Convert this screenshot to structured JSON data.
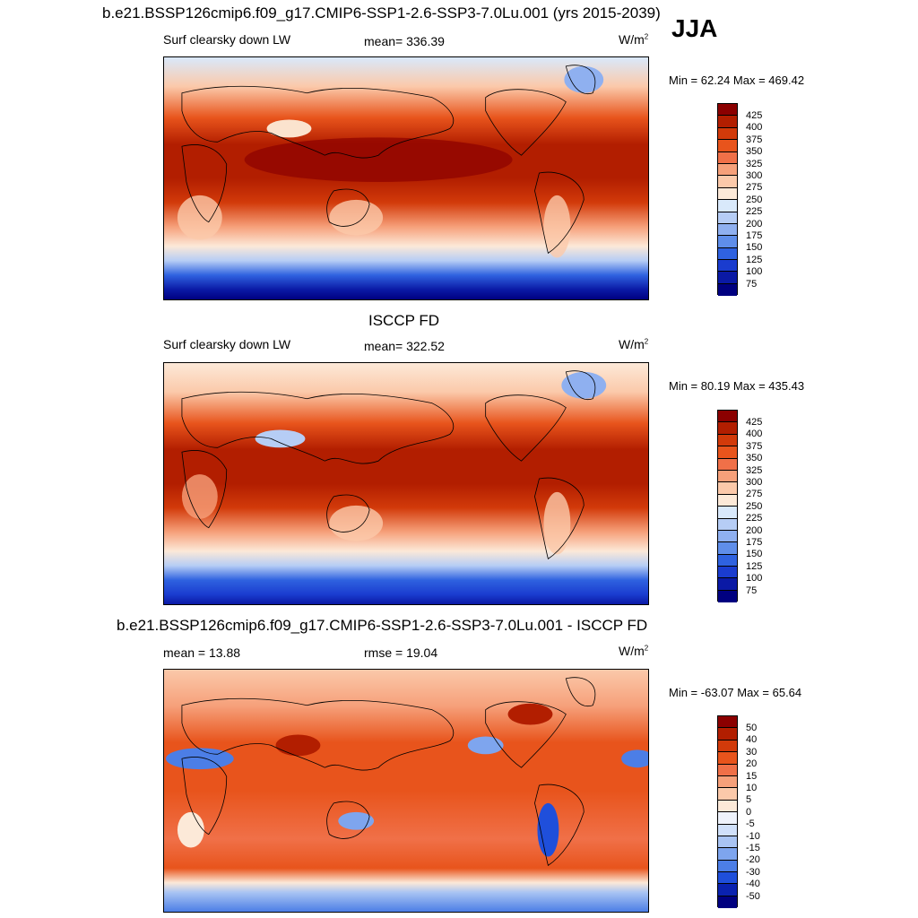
{
  "main_title": "b.e21.BSSP126cmip6.f09_g17.CMIP6-SSP1-2.6-SSP3-7.0Lu.001 (yrs 2015-2039)",
  "season": "JJA",
  "panels": [
    {
      "left_label": "Surf clearsky down LW",
      "center_label": "mean= 336.39",
      "units": "W/m",
      "units_sup": "2",
      "minmax": "Min =  62.24 Max = 469.42",
      "colorbar_labels": [
        "425",
        "400",
        "375",
        "350",
        "325",
        "300",
        "275",
        "250",
        "225",
        "200",
        "175",
        "150",
        "125",
        "100",
        "75"
      ]
    },
    {
      "title": "ISCCP FD",
      "left_label": "Surf clearsky down LW",
      "center_label": "mean= 322.52",
      "units": "W/m",
      "units_sup": "2",
      "minmax": "Min =  80.19 Max = 435.43",
      "colorbar_labels": [
        "425",
        "400",
        "375",
        "350",
        "325",
        "300",
        "275",
        "250",
        "225",
        "200",
        "175",
        "150",
        "125",
        "100",
        "75"
      ]
    },
    {
      "title": "b.e21.BSSP126cmip6.f09_g17.CMIP6-SSP1-2.6-SSP3-7.0Lu.001 - ISCCP FD",
      "left_label": "mean =  13.88",
      "center_label": "rmse =  19.04",
      "units": "W/m",
      "units_sup": "2",
      "minmax": "Min = -63.07 Max =  65.64",
      "colorbar_labels": [
        "50",
        "40",
        "30",
        "20",
        "15",
        "10",
        "5",
        "0",
        "-5",
        "-10",
        "-15",
        "-20",
        "-30",
        "-40",
        "-50"
      ]
    }
  ],
  "colors": {
    "abs_scale": [
      "#8b0000",
      "#b21e00",
      "#d23a0a",
      "#e8541c",
      "#f07048",
      "#f6a07a",
      "#fbc9aa",
      "#fce9d8",
      "#d9e9fb",
      "#b6cdf5",
      "#8fb0f0",
      "#5f8eea",
      "#2f62e0",
      "#1a3ccf",
      "#0a19a5",
      "#000080"
    ],
    "diff_scale": [
      "#8b0000",
      "#b21e00",
      "#d23a0a",
      "#e8541c",
      "#f07048",
      "#f6a07a",
      "#fbc9aa",
      "#fce9d8",
      "#eef2fb",
      "#d0e0fa",
      "#a9c4f3",
      "#7ea5ee",
      "#4c7ee6",
      "#1f4fdb",
      "#0a22b0",
      "#000080"
    ]
  }
}
